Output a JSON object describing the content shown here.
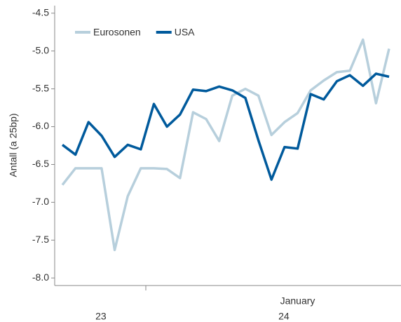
{
  "chart_data": {
    "type": "line",
    "y_label": "Antall (a 25bp)",
    "categories": [
      null,
      null,
      null,
      null,
      null,
      null,
      null,
      null,
      null,
      null,
      null,
      null,
      null,
      null,
      null,
      null,
      null,
      null,
      "January",
      null,
      null,
      null,
      null,
      null,
      null,
      null
    ],
    "years": [
      null,
      null,
      null,
      "23",
      null,
      null,
      null,
      null,
      null,
      null,
      null,
      null,
      null,
      null,
      null,
      null,
      null,
      "24",
      null,
      null,
      null,
      null,
      null,
      null,
      null,
      null
    ],
    "series": [
      {
        "name": "Eurosonen",
        "color": "#b7cfdc",
        "values": [
          -6.77,
          -6.55,
          -6.55,
          -6.55,
          -7.63,
          -6.92,
          -6.55,
          -6.55,
          -6.56,
          -6.68,
          -5.81,
          -5.9,
          -6.19,
          -5.59,
          -5.5,
          -5.59,
          -6.11,
          -5.94,
          -5.82,
          -5.52,
          -5.39,
          -5.28,
          -5.26,
          -4.85,
          -5.69,
          -4.97
        ]
      },
      {
        "name": "USA",
        "color": "#005a9c",
        "values": [
          -6.24,
          -6.37,
          -5.94,
          -6.12,
          -6.4,
          -6.24,
          -6.3,
          -5.7,
          -6.0,
          -5.84,
          -5.51,
          -5.53,
          -5.47,
          -5.52,
          -5.62,
          -6.18,
          -6.7,
          -6.27,
          -6.29,
          -5.57,
          -5.64,
          -5.4,
          -5.32,
          -5.46,
          -5.3,
          -5.34
        ]
      }
    ],
    "ylim": [
      -8.1,
      -4.4
    ],
    "yticks": [
      -4.5,
      {
        "value": -5,
        "label": "-5.0"
      },
      -5.5,
      {
        "value": -6,
        "label": "-6.0"
      },
      -6.5,
      {
        "value": -7,
        "label": "-7.0"
      },
      -7.5,
      {
        "value": -8,
        "label": "-8.0"
      }
    ],
    "legend": "top-left"
  }
}
